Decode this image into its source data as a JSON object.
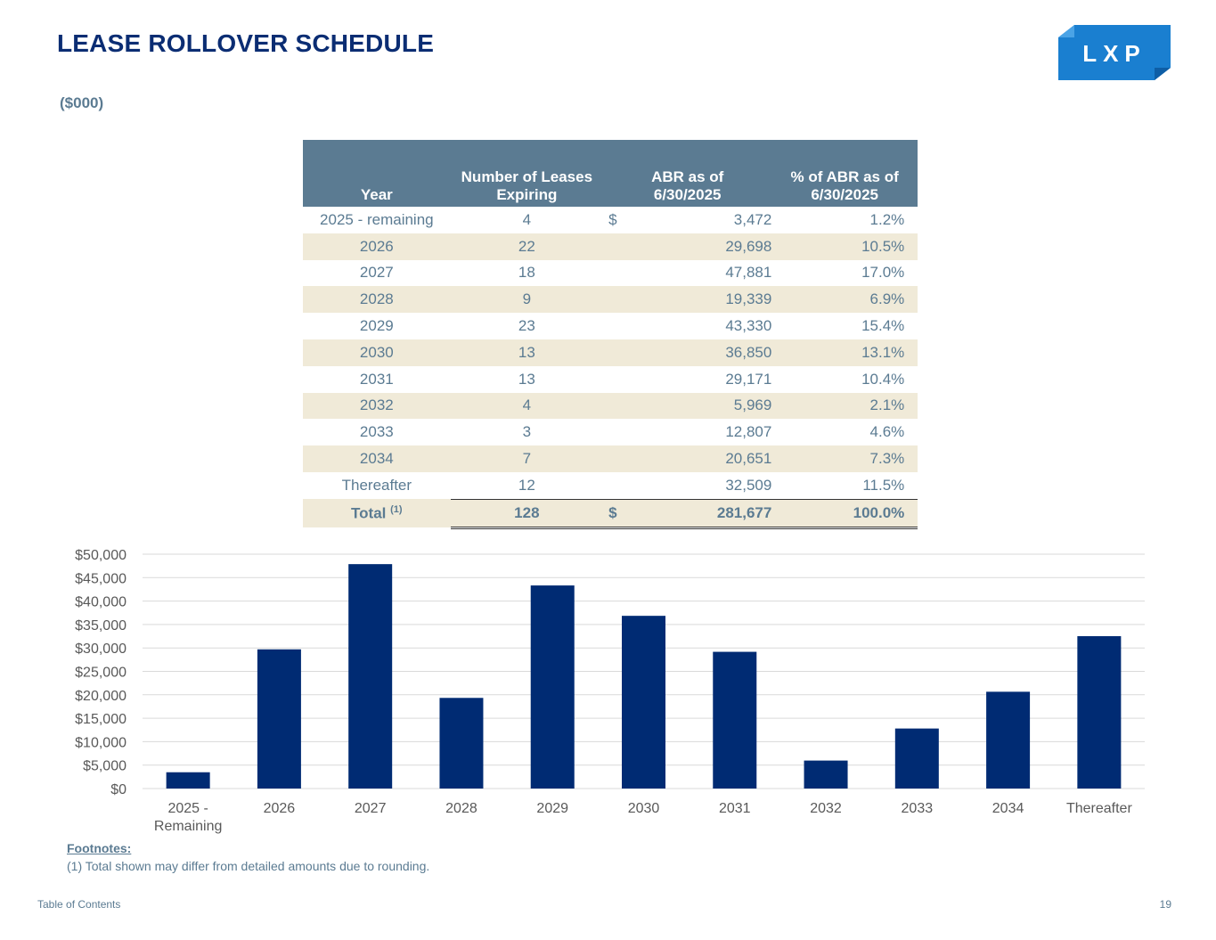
{
  "header": {
    "title": "LEASE ROLLOVER SCHEDULE",
    "units": "($000)",
    "logo_text": "LXP"
  },
  "table": {
    "headers": {
      "year": "Year",
      "leases_line1": "Number of Leases",
      "leases_line2": "Expiring",
      "abr_line1": "ABR as of",
      "abr_line2": "6/30/2025",
      "pct_line1": "% of ABR as of",
      "pct_line2": "6/30/2025"
    },
    "currency": "$",
    "pct_sign": "%",
    "rows": [
      {
        "year": "2025 - remaining",
        "leases": "4",
        "abr": "3,472",
        "pct": "1.2"
      },
      {
        "year": "2026",
        "leases": "22",
        "abr": "29,698",
        "pct": "10.5"
      },
      {
        "year": "2027",
        "leases": "18",
        "abr": "47,881",
        "pct": "17.0"
      },
      {
        "year": "2028",
        "leases": "9",
        "abr": "19,339",
        "pct": "6.9"
      },
      {
        "year": "2029",
        "leases": "23",
        "abr": "43,330",
        "pct": "15.4"
      },
      {
        "year": "2030",
        "leases": "13",
        "abr": "36,850",
        "pct": "13.1"
      },
      {
        "year": "2031",
        "leases": "13",
        "abr": "29,171",
        "pct": "10.4"
      },
      {
        "year": "2032",
        "leases": "4",
        "abr": "5,969",
        "pct": "2.1"
      },
      {
        "year": "2033",
        "leases": "3",
        "abr": "12,807",
        "pct": "4.6"
      },
      {
        "year": "2034",
        "leases": "7",
        "abr": "20,651",
        "pct": "7.3"
      },
      {
        "year": "Thereafter",
        "leases": "12",
        "abr": "32,509",
        "pct": "11.5"
      }
    ],
    "total": {
      "label": "Total",
      "footnote_ref": "(1)",
      "leases": "128",
      "abr": "281,677",
      "pct": "100.0"
    }
  },
  "chart_data": {
    "type": "bar",
    "title": "",
    "xlabel": "",
    "ylabel": "",
    "categories": [
      [
        "2025 -",
        "Remaining"
      ],
      [
        "2026"
      ],
      [
        "2027"
      ],
      [
        "2028"
      ],
      [
        "2029"
      ],
      [
        "2030"
      ],
      [
        "2031"
      ],
      [
        "2032"
      ],
      [
        "2033"
      ],
      [
        "2034"
      ],
      [
        "Thereafter"
      ]
    ],
    "values": [
      3472,
      29698,
      47881,
      19339,
      43330,
      36850,
      29171,
      5969,
      12807,
      20651,
      32509
    ],
    "ylim": [
      0,
      50000
    ],
    "yticks": [
      0,
      5000,
      10000,
      15000,
      20000,
      25000,
      30000,
      35000,
      40000,
      45000,
      50000
    ],
    "ytick_labels": [
      "$0",
      "$5,000",
      "$10,000",
      "$15,000",
      "$20,000",
      "$25,000",
      "$30,000",
      "$35,000",
      "$40,000",
      "$45,000",
      "$50,000"
    ],
    "grid": true,
    "bar_color": "#002b73"
  },
  "footnotes": {
    "label": "Footnotes:",
    "items": [
      "(1)  Total shown may differ from detailed amounts due to rounding."
    ]
  },
  "footer": {
    "toc_link": "Table of Contents",
    "page_number": "19"
  }
}
